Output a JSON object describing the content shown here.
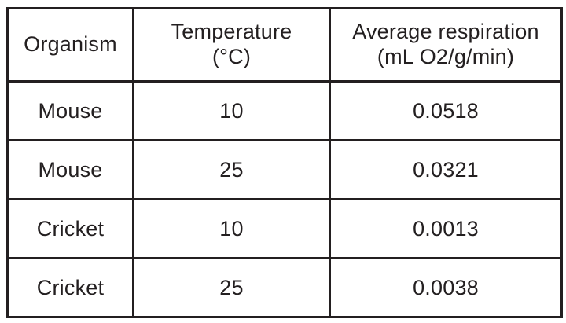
{
  "colors": {
    "ink": "#231f20",
    "border": "#231f20",
    "background": "#ffffff"
  },
  "table": {
    "headers": {
      "organism": "Organism",
      "temperature_line1": "Temperature",
      "temperature_line2": "(°C)",
      "respiration_line1": "Average respiration",
      "respiration_line2": "(mL O2/g/min)"
    },
    "rows": [
      {
        "organism": "Mouse",
        "temperature": "10",
        "respiration": "0.0518"
      },
      {
        "organism": "Mouse",
        "temperature": "25",
        "respiration": "0.0321"
      },
      {
        "organism": "Cricket",
        "temperature": "10",
        "respiration": "0.0013"
      },
      {
        "organism": "Cricket",
        "temperature": "25",
        "respiration": "0.0038"
      }
    ]
  },
  "chart_data": {
    "type": "table",
    "title": "",
    "columns": [
      "Organism",
      "Temperature (°C)",
      "Average respiration (mL O2/g/min)"
    ],
    "rows": [
      [
        "Mouse",
        10,
        0.0518
      ],
      [
        "Mouse",
        25,
        0.0321
      ],
      [
        "Cricket",
        10,
        0.0013
      ],
      [
        "Cricket",
        25,
        0.0038
      ]
    ]
  }
}
